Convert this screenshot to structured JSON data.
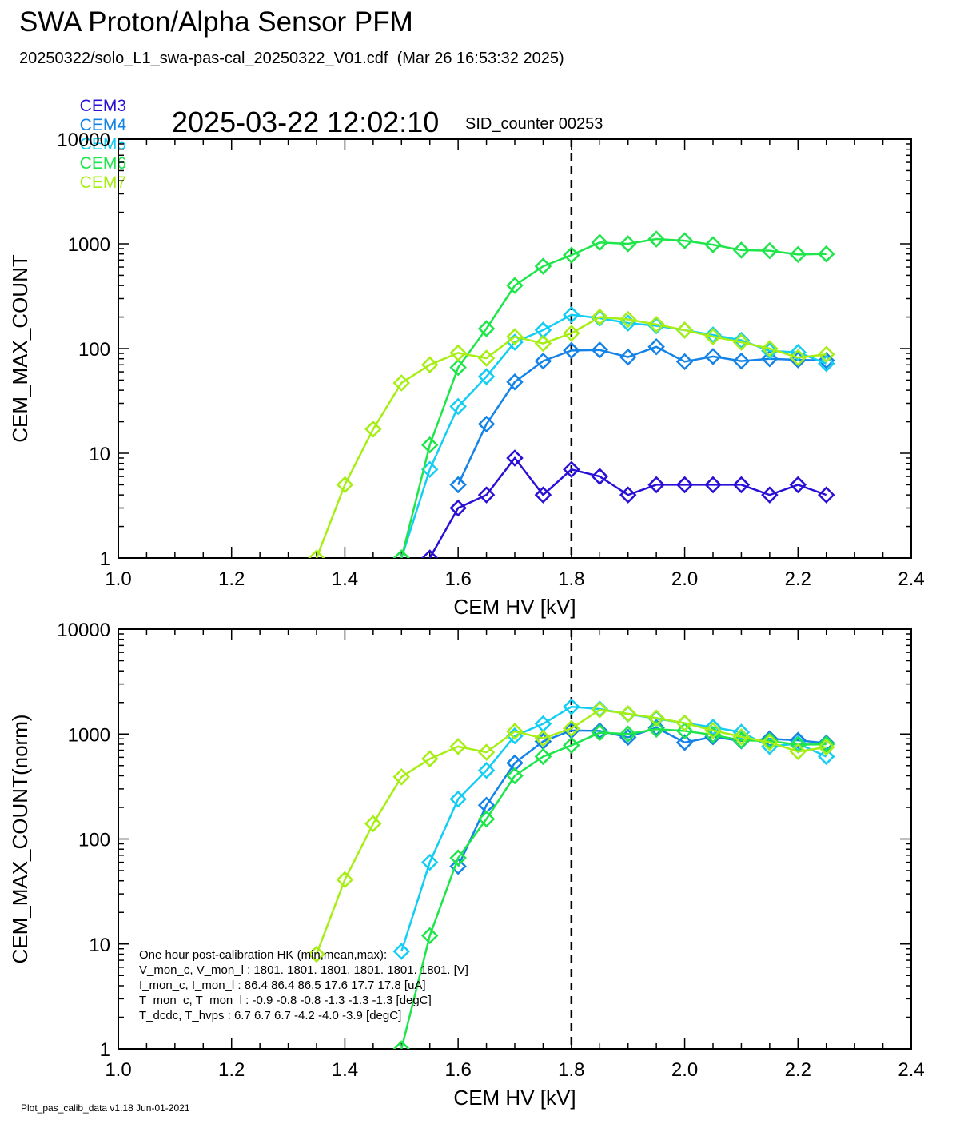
{
  "header": {
    "title": "SWA Proton/Alpha Sensor PFM",
    "file_line": "20250322/solo_L1_swa-pas-cal_20250322_V01.cdf  (Mar 26 16:53:32 2025)",
    "timestamp": "2025-03-22 12:02:10",
    "sid": "SID_counter 00253"
  },
  "legend": [
    {
      "label": "CEM3",
      "color": "#2a10d6"
    },
    {
      "label": "CEM4",
      "color": "#1483e8"
    },
    {
      "label": "CEM5",
      "color": "#14cdf2"
    },
    {
      "label": "CEM6",
      "color": "#1ee64a"
    },
    {
      "label": "CEM7",
      "color": "#a6ee14"
    }
  ],
  "footer": "Plot_pas_calib_data v1.18 Jun-01-2021",
  "hk_note": [
    "One hour post-calibration HK (min,mean,max):",
    "V_mon_c, V_mon_l :   1801.  1801.  1801.       1801.  1801.  1801. [V]",
    "I_mon_c,  I_mon_l :     86.4   86.4   86.5         17.6   17.7   17.8  [uA]",
    "T_mon_c, T_mon_l :    -0.9   -0.8   -0.8          -1.3   -1.3   -1.3  [degC]",
    "T_dcdc,    T_hvps :       6.7    6.7    6.7           -4.2   -4.0   -3.9  [degC]"
  ],
  "chart_data": [
    {
      "type": "line",
      "xlabel": "CEM HV [kV]",
      "ylabel": "CEM_MAX_COUNT",
      "xlim": [
        1.0,
        2.4
      ],
      "ylim": [
        1,
        10000
      ],
      "yscale": "log",
      "x_ticks": [
        "1.0",
        "1.2",
        "1.4",
        "1.6",
        "1.8",
        "2.0",
        "2.2",
        "2.4"
      ],
      "y_ticks": [
        "1",
        "10",
        "100",
        "1000",
        "10000"
      ],
      "vline_x": 1.8,
      "marker": "diamond",
      "series": [
        {
          "name": "CEM3",
          "color": "#2a10d6",
          "x": [
            1.55,
            1.6,
            1.65,
            1.7,
            1.75,
            1.8,
            1.85,
            1.9,
            1.95,
            2.0,
            2.05,
            2.1,
            2.15,
            2.2,
            2.25
          ],
          "y": [
            1,
            3,
            4,
            9,
            4,
            7,
            6,
            4,
            5,
            5,
            5,
            5,
            4,
            5,
            4
          ]
        },
        {
          "name": "CEM4",
          "color": "#1483e8",
          "x": [
            1.6,
            1.65,
            1.7,
            1.75,
            1.8,
            1.85,
            1.9,
            1.95,
            2.0,
            2.05,
            2.1,
            2.15,
            2.2,
            2.25
          ],
          "y": [
            5,
            19,
            48,
            76,
            96,
            97,
            83,
            104,
            75,
            84,
            76,
            80,
            78,
            77
          ]
        },
        {
          "name": "CEM5",
          "color": "#14cdf2",
          "x": [
            1.5,
            1.55,
            1.6,
            1.65,
            1.7,
            1.75,
            1.8,
            1.85,
            1.9,
            1.95,
            2.0,
            2.05,
            2.1,
            2.15,
            2.2,
            2.25
          ],
          "y": [
            1,
            7,
            28,
            54,
            115,
            150,
            210,
            195,
            175,
            165,
            150,
            135,
            120,
            95,
            92,
            72
          ]
        },
        {
          "name": "CEM6",
          "color": "#1ee64a",
          "x": [
            1.5,
            1.55,
            1.6,
            1.65,
            1.7,
            1.75,
            1.8,
            1.85,
            1.9,
            1.95,
            2.0,
            2.05,
            2.1,
            2.15,
            2.2,
            2.25
          ],
          "y": [
            1,
            12,
            66,
            155,
            400,
            610,
            780,
            1030,
            1000,
            1110,
            1070,
            980,
            870,
            860,
            790,
            800
          ]
        },
        {
          "name": "CEM7",
          "color": "#a6ee14",
          "x": [
            1.35,
            1.4,
            1.45,
            1.5,
            1.55,
            1.6,
            1.65,
            1.7,
            1.75,
            1.8,
            1.85,
            1.9,
            1.95,
            2.0,
            2.05,
            2.1,
            2.15,
            2.2,
            2.25
          ],
          "y": [
            1,
            5,
            17,
            47,
            70,
            91,
            81,
            130,
            112,
            140,
            200,
            190,
            170,
            150,
            130,
            115,
            100,
            82,
            88
          ]
        }
      ]
    },
    {
      "type": "line",
      "xlabel": "CEM HV [kV]",
      "ylabel": "CEM_MAX_COUNT(norm)",
      "xlim": [
        1.0,
        2.4
      ],
      "ylim": [
        1,
        10000
      ],
      "yscale": "log",
      "x_ticks": [
        "1.0",
        "1.2",
        "1.4",
        "1.6",
        "1.8",
        "2.0",
        "2.2",
        "2.4"
      ],
      "y_ticks": [
        "1",
        "10",
        "100",
        "1000",
        "10000"
      ],
      "vline_x": 1.8,
      "marker": "diamond",
      "series": [
        {
          "name": "CEM4",
          "color": "#1483e8",
          "x": [
            1.6,
            1.65,
            1.7,
            1.75,
            1.8,
            1.85,
            1.9,
            1.95,
            2.0,
            2.05,
            2.1,
            2.15,
            2.2,
            2.25
          ],
          "y": [
            55,
            210,
            530,
            850,
            1080,
            1070,
            930,
            1150,
            830,
            940,
            860,
            900,
            870,
            820
          ]
        },
        {
          "name": "CEM5",
          "color": "#14cdf2",
          "x": [
            1.5,
            1.55,
            1.6,
            1.65,
            1.7,
            1.75,
            1.8,
            1.85,
            1.9,
            1.95,
            2.0,
            2.05,
            2.1,
            2.15,
            2.2,
            2.25
          ],
          "y": [
            8.5,
            60,
            240,
            450,
            960,
            1250,
            1820,
            1730,
            1550,
            1400,
            1270,
            1160,
            1040,
            760,
            810,
            610
          ]
        },
        {
          "name": "CEM6",
          "color": "#1ee64a",
          "x": [
            1.5,
            1.55,
            1.6,
            1.65,
            1.7,
            1.75,
            1.8,
            1.85,
            1.9,
            1.95,
            2.0,
            2.05,
            2.1,
            2.15,
            2.2,
            2.25
          ],
          "y": [
            1,
            12,
            66,
            155,
            400,
            610,
            780,
            1030,
            1000,
            1110,
            1070,
            980,
            870,
            860,
            790,
            800
          ]
        },
        {
          "name": "CEM7",
          "color": "#a6ee14",
          "x": [
            1.35,
            1.4,
            1.45,
            1.5,
            1.55,
            1.6,
            1.65,
            1.7,
            1.75,
            1.8,
            1.85,
            1.9,
            1.95,
            2.0,
            2.05,
            2.1,
            2.15,
            2.2,
            2.25
          ],
          "y": [
            8,
            41,
            140,
            390,
            580,
            760,
            670,
            1060,
            910,
            1130,
            1700,
            1560,
            1420,
            1270,
            1080,
            940,
            830,
            680,
            750
          ]
        }
      ]
    }
  ]
}
